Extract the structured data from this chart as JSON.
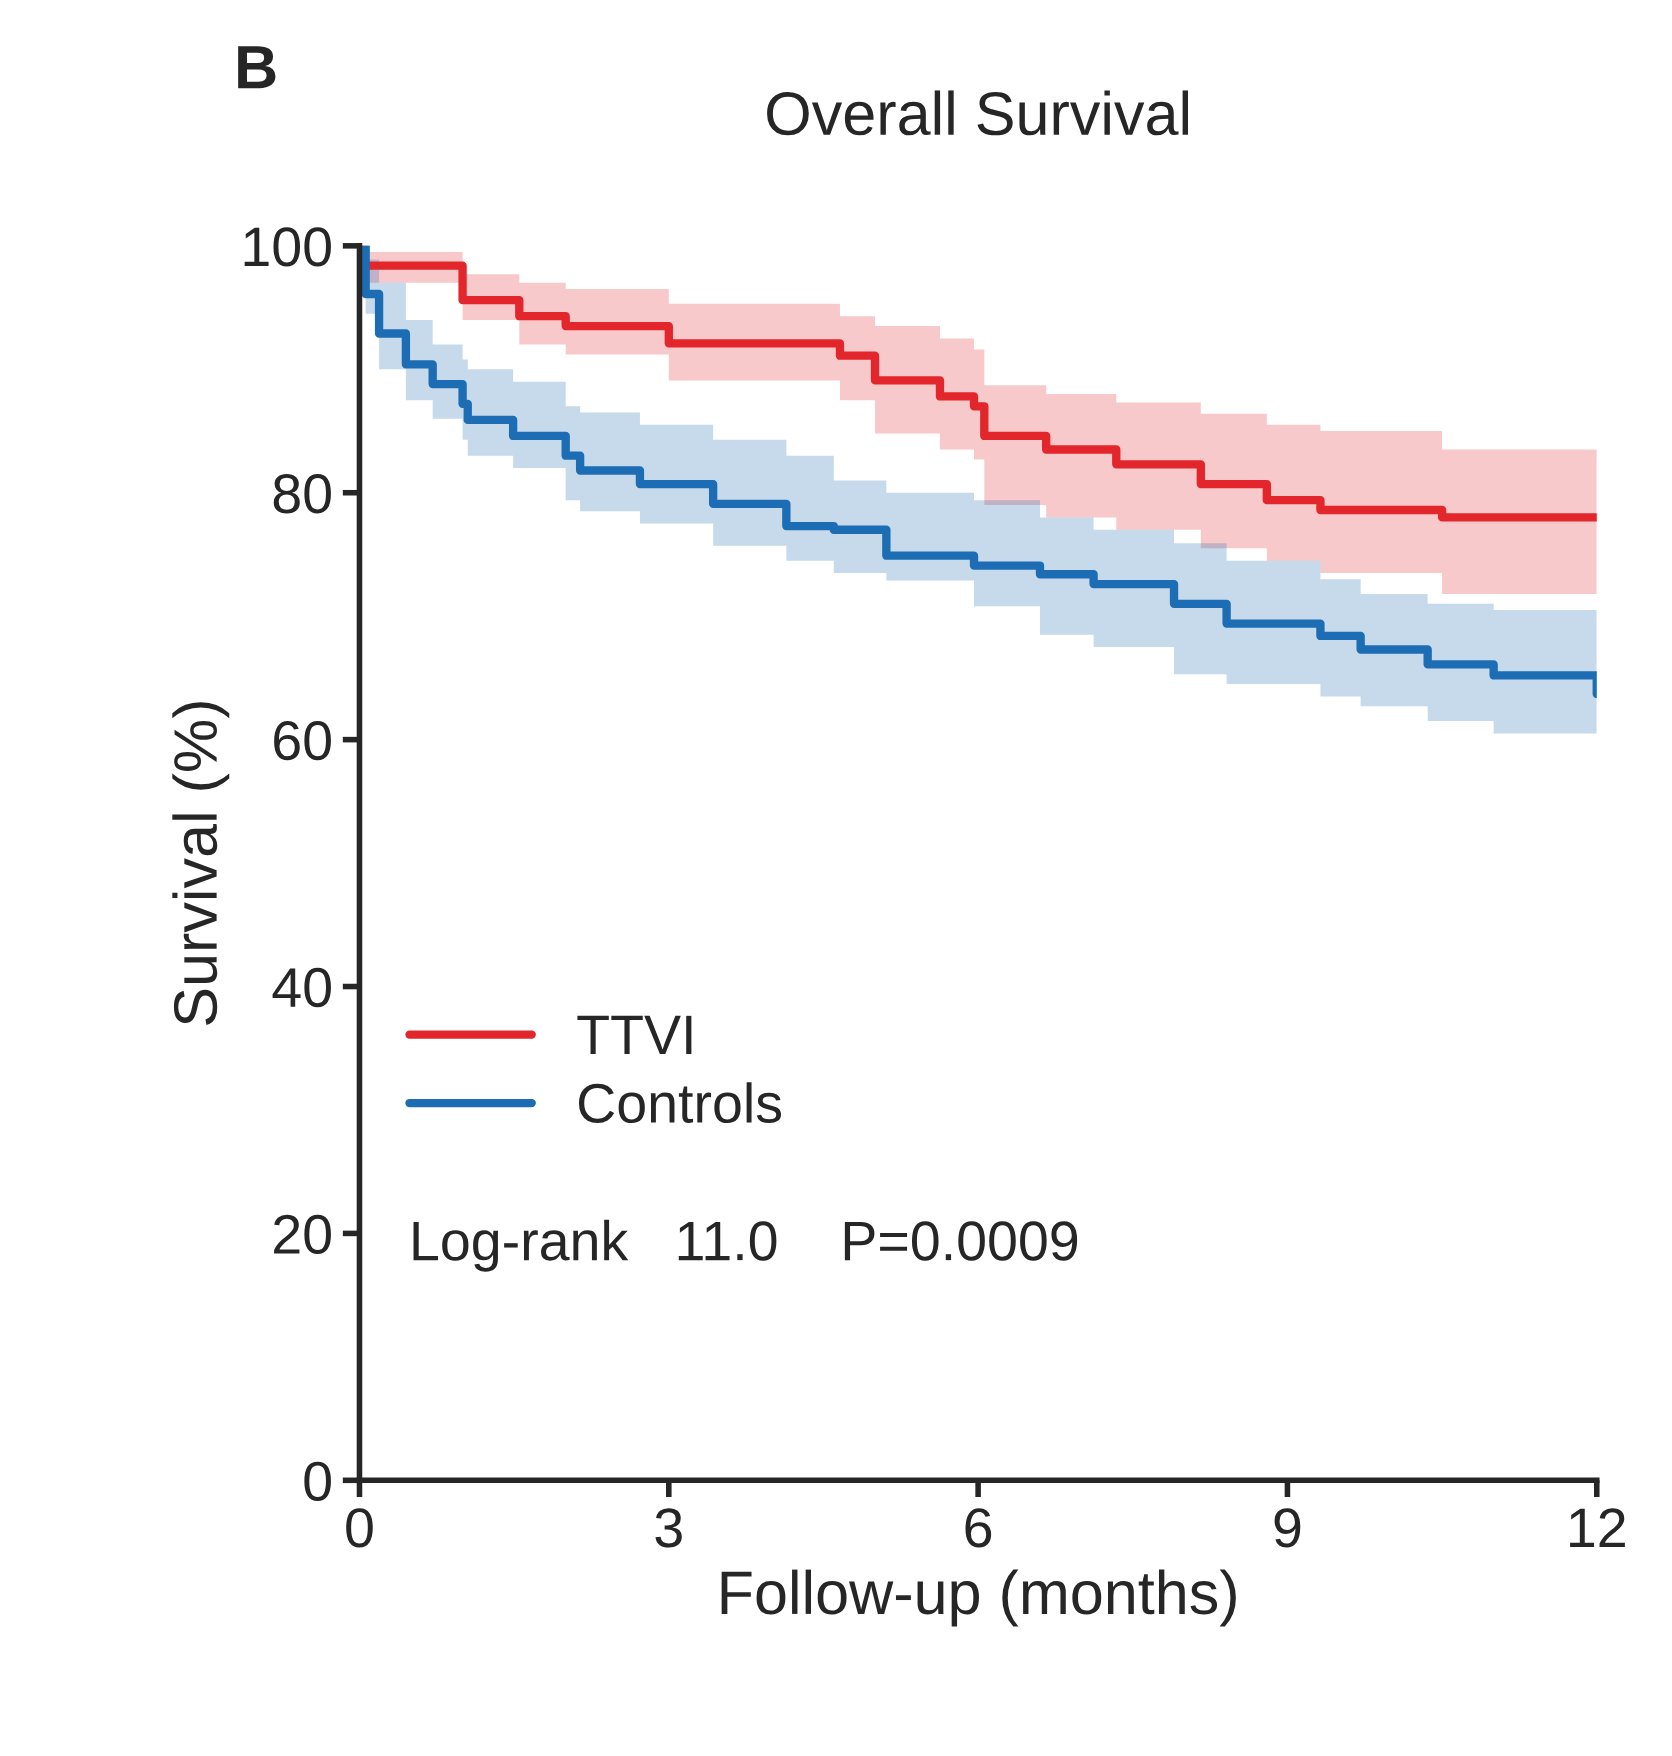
{
  "chart_data": {
    "type": "step",
    "title": "Overall Survival",
    "xlabel": "Follow-up (months)",
    "ylabel": "Survival (%)",
    "annotations": [
      "B",
      "Log-rank   11.0    P=0.0009"
    ],
    "xlim": [
      0,
      12
    ],
    "xticks": [
      0,
      3,
      6,
      9,
      12
    ],
    "ylim": [
      0,
      100
    ],
    "yticks": [
      0,
      20,
      40,
      60,
      80,
      100
    ],
    "grid": false,
    "legend": "lower left",
    "series": [
      {
        "name": "TTVI",
        "color": "#e3262b",
        "x": [
          0,
          0.05,
          1.0,
          1.55,
          2.0,
          3.0,
          4.66,
          5.0,
          5.63,
          5.96,
          6.06,
          6.66,
          7.34,
          8.16,
          8.8,
          9.32,
          10.5,
          12
        ],
        "values": [
          100,
          98.4,
          95.6,
          94.3,
          93.5,
          92.1,
          91.1,
          89.1,
          87.8,
          87.0,
          84.6,
          83.5,
          82.3,
          80.7,
          79.4,
          78.6,
          78.0,
          78.0
        ],
        "upper": [
          100,
          99.5,
          97.7,
          97.0,
          96.5,
          95.3,
          94.3,
          93.5,
          92.5,
          91.6,
          88.7,
          88.0,
          87.3,
          86.4,
          85.5,
          85.0,
          83.5,
          83.5
        ],
        "lower": [
          100,
          97,
          94,
          92,
          91.2,
          89.1,
          87.5,
          84.8,
          83.5,
          82.7,
          79,
          78,
          77,
          75.5,
          74.5,
          73.5,
          71.8,
          71.0
        ]
      },
      {
        "name": "Controls",
        "color": "#1c6db4",
        "x": [
          0,
          0.06,
          0.19,
          0.45,
          0.71,
          1.0,
          1.05,
          1.49,
          2.0,
          2.14,
          2.72,
          3.43,
          4.14,
          4.6,
          5.11,
          5.96,
          6.6,
          7.12,
          7.9,
          8.41,
          9.32,
          9.71,
          10.36,
          11.0,
          12
        ],
        "values": [
          100,
          96.1,
          92.9,
          90.4,
          88.8,
          87.2,
          85.9,
          84.6,
          83.0,
          81.8,
          80.7,
          79.1,
          77.3,
          77.0,
          74.9,
          74.1,
          73.4,
          72.6,
          71.0,
          69.4,
          68.4,
          67.3,
          66.1,
          65.2,
          63.7
        ],
        "upper": [
          100,
          98.9,
          97,
          94,
          92,
          90.8,
          90,
          89,
          87,
          86.5,
          85.5,
          84.3,
          83,
          81,
          80,
          79.4,
          78,
          77,
          75.9,
          74.5,
          73,
          71.8,
          71,
          70.5,
          69.7
        ],
        "lower": [
          100,
          94.5,
          90,
          87.5,
          86,
          84.3,
          83,
          82,
          79.4,
          78.5,
          77.5,
          75.7,
          74.5,
          73.5,
          72.9,
          70.8,
          68.5,
          67.5,
          65.3,
          64.5,
          63.5,
          62.7,
          61.5,
          60.5,
          58
        ]
      }
    ]
  }
}
